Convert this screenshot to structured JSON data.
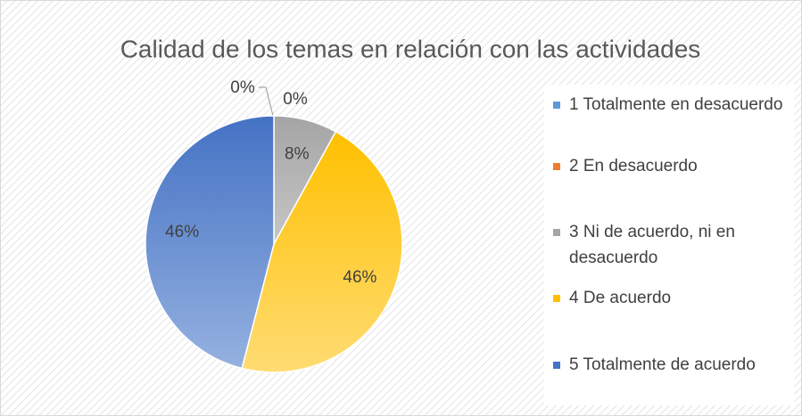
{
  "chart_data": {
    "type": "pie",
    "title": "Calidad de los temas en relación con las actividades",
    "categories": [
      "1 Totalmente en desacuerdo",
      "2 En desacuerdo",
      "3 Ni de acuerdo, ni en desacuerdo",
      "4 De acuerdo",
      "5 Totalmente de acuerdo"
    ],
    "values": [
      0,
      0,
      8,
      46,
      46
    ],
    "value_labels": [
      "0%",
      "0%",
      "8%",
      "46%",
      "46%"
    ],
    "colors": [
      "#5b9bd5",
      "#ed7d31",
      "#a5a5a5",
      "#ffc000",
      "#4472c4"
    ],
    "legend": "right"
  }
}
